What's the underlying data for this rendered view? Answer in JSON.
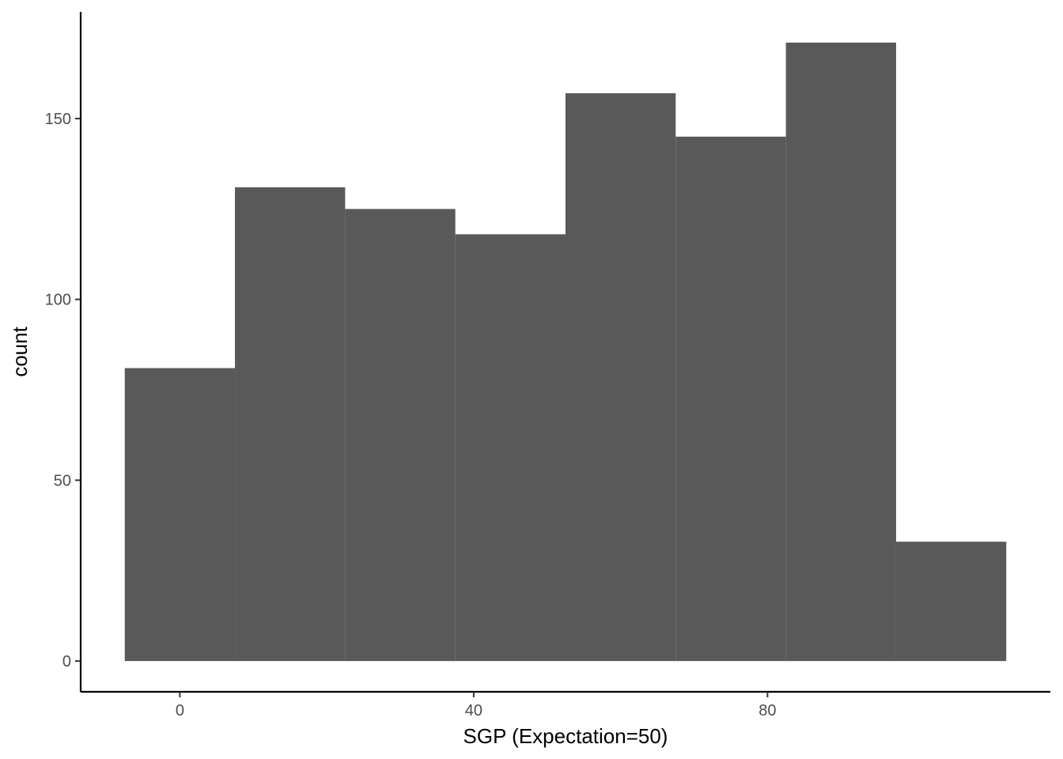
{
  "chart_data": {
    "type": "bar",
    "title": "",
    "xlabel": "SGP (Expectation=50)",
    "ylabel": "count",
    "bin_width": 15,
    "bins": [
      {
        "x_start": -7.5,
        "x_end": 7.5,
        "count": 81
      },
      {
        "x_start": 7.5,
        "x_end": 22.5,
        "count": 131
      },
      {
        "x_start": 22.5,
        "x_end": 37.5,
        "count": 125
      },
      {
        "x_start": 37.5,
        "x_end": 52.5,
        "count": 118
      },
      {
        "x_start": 52.5,
        "x_end": 67.5,
        "count": 157
      },
      {
        "x_start": 67.5,
        "x_end": 82.5,
        "count": 145
      },
      {
        "x_start": 82.5,
        "x_end": 97.5,
        "count": 171
      },
      {
        "x_start": 97.5,
        "x_end": 112.5,
        "count": 33
      }
    ],
    "xlim": [
      -13.5,
      118.5
    ],
    "ylim": [
      -8.5,
      179.5
    ],
    "x_ticks": [
      0,
      40,
      80
    ],
    "x_tick_labels": [
      "0",
      "40",
      "80"
    ],
    "y_ticks": [
      0,
      50,
      100,
      150
    ],
    "y_tick_labels": [
      "0",
      "50",
      "100",
      "150"
    ],
    "bar_color": "#595959",
    "grid": false,
    "legend": "none"
  }
}
